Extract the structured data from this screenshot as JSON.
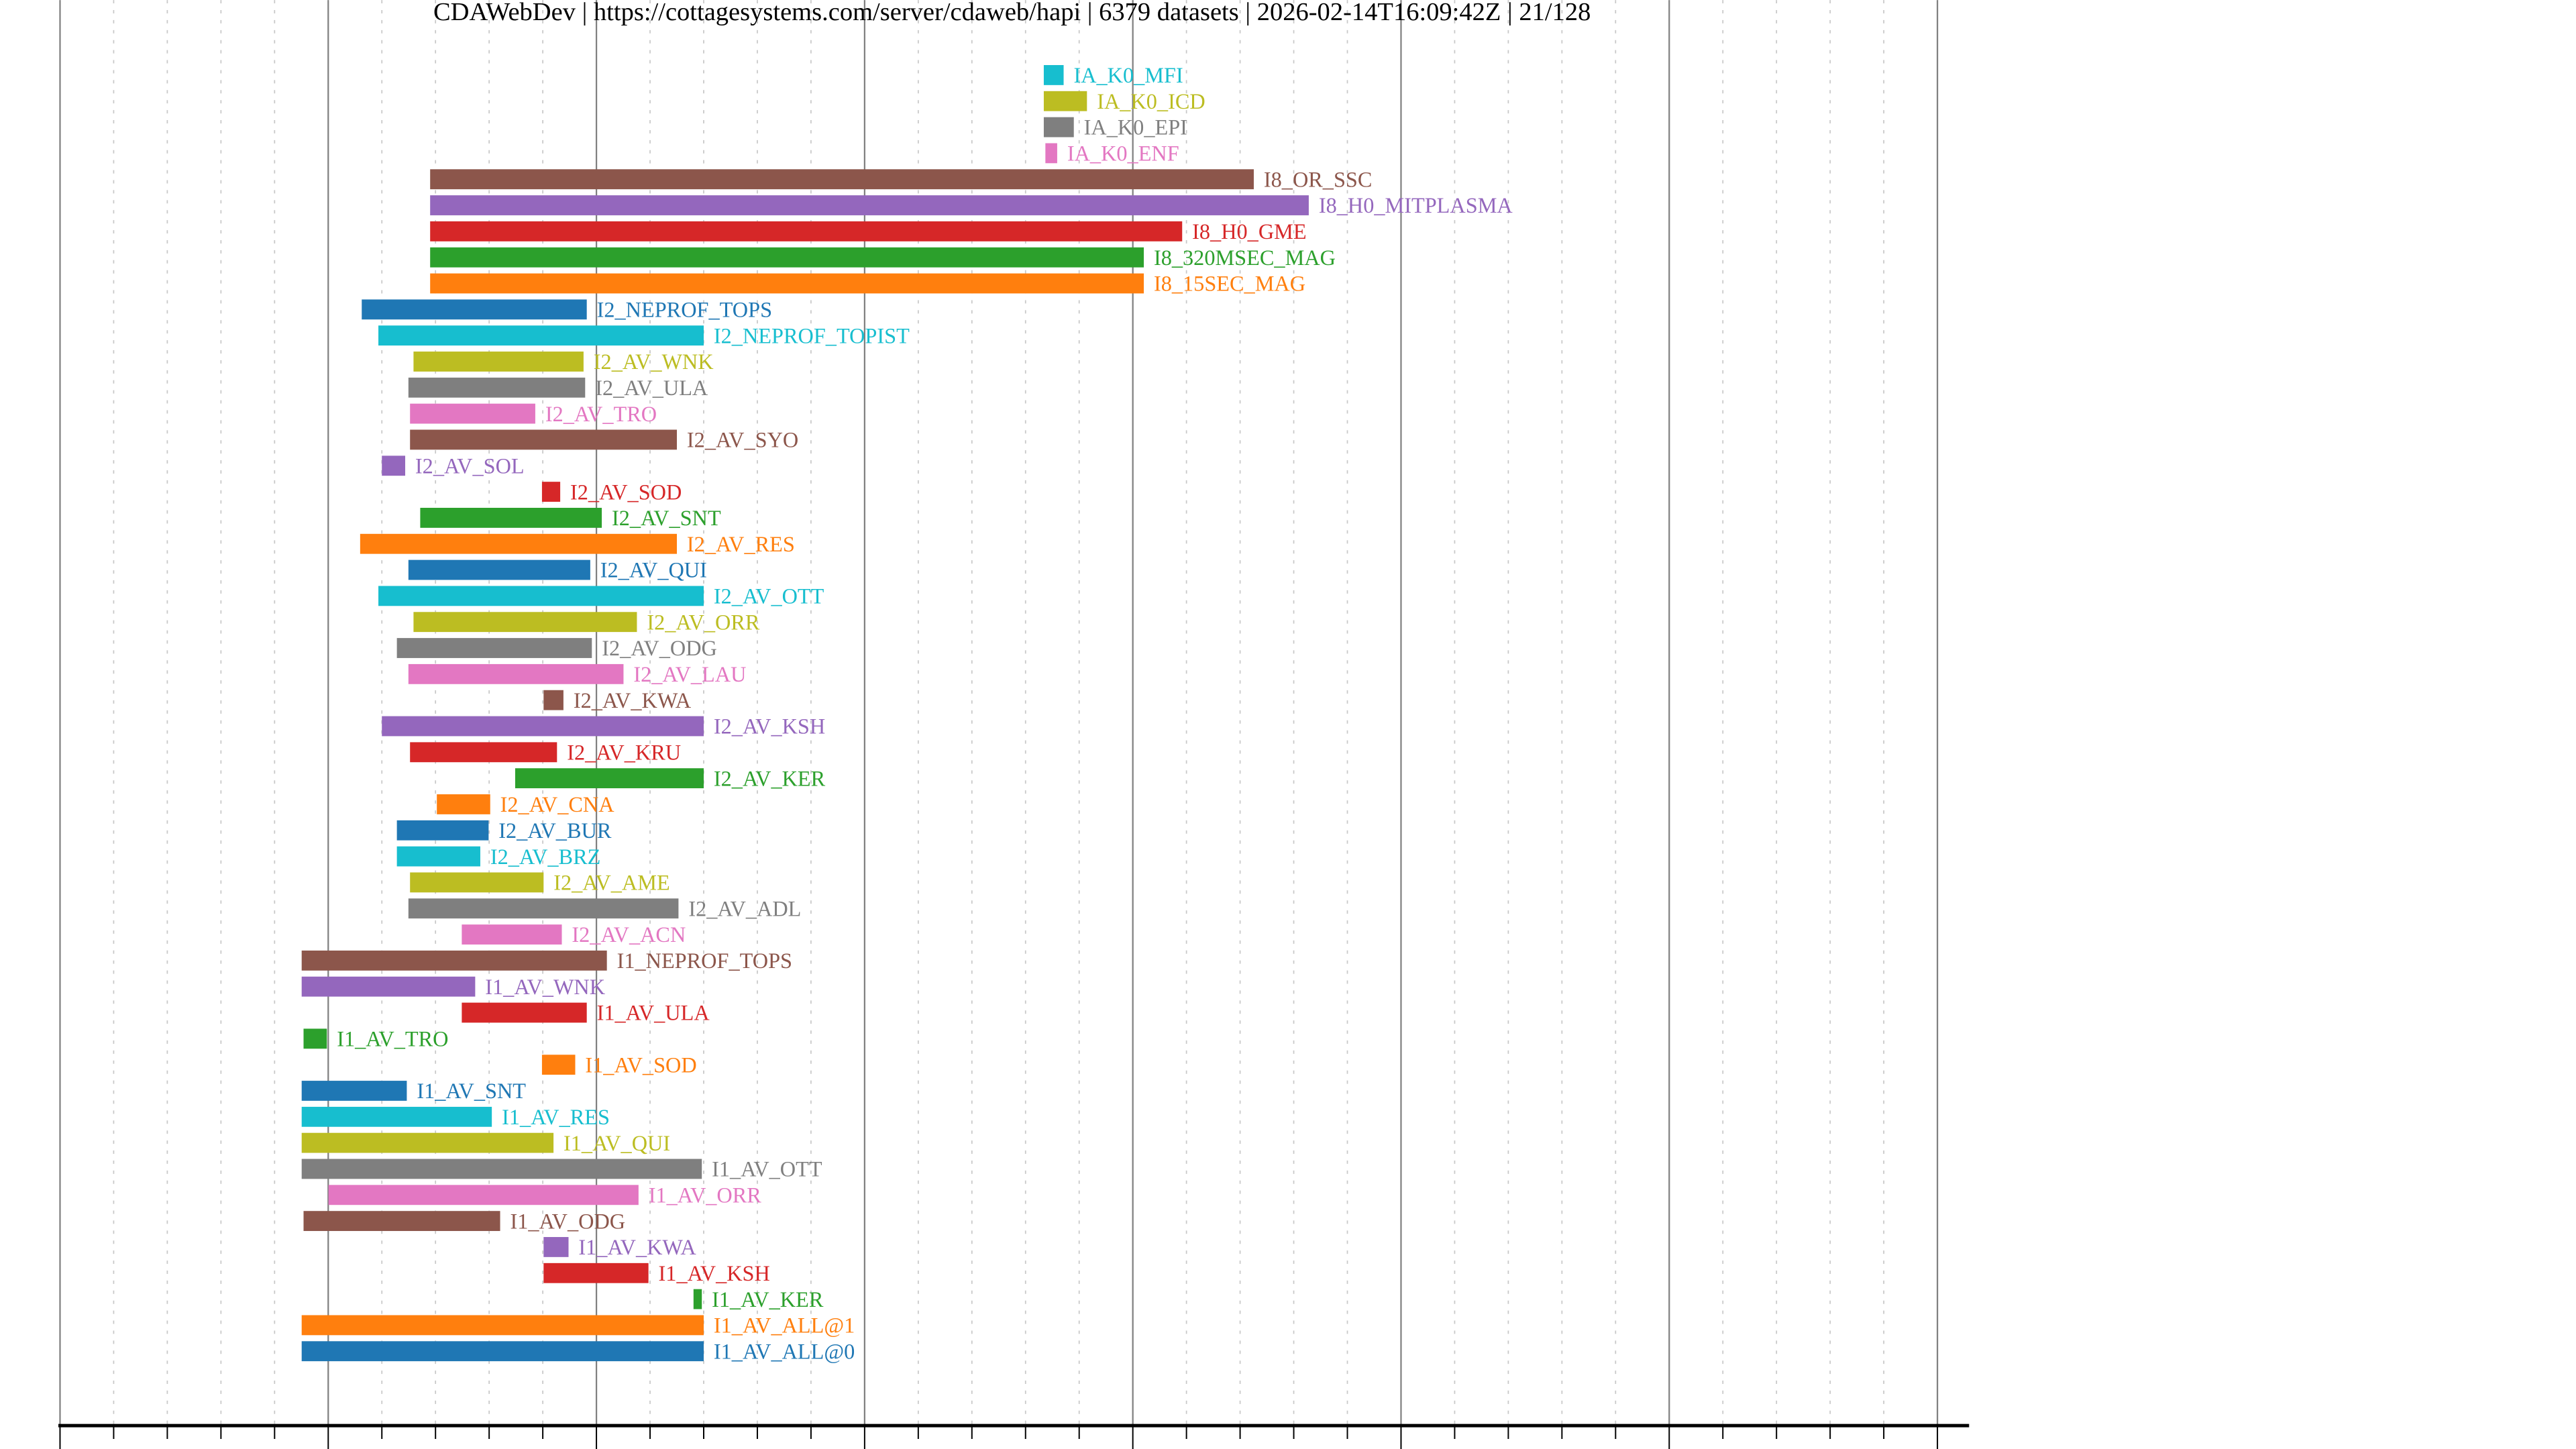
{
  "chart_data": {
    "type": "bar",
    "orientation": "horizontal-timeline",
    "title": "CDAWebDev | https://cottagesystems.com/server/cdaweb/hapi | 6379 datasets | 2026-02-14T16:09:42Z | 21/128",
    "xlabel": "",
    "ylabel": "",
    "xlim": [
      1960,
      2031
    ],
    "xticks": [
      "1960",
      "1970",
      "1980",
      "1990",
      "2000",
      "2010",
      "2020",
      "2030"
    ],
    "grid": "major every 10 years solid, minor every 2 years dotted",
    "palette": [
      "#1f77b4",
      "#ff7f0e",
      "#2ca02c",
      "#d62728",
      "#9467bd",
      "#8c564b",
      "#e377c2",
      "#7f7f7f",
      "#bcbd22",
      "#17becf"
    ],
    "series": [
      {
        "name": "IA_K0_MFI",
        "start": 1996.68,
        "end": 1997.42
      },
      {
        "name": "IA_K0_ICD",
        "start": 1996.68,
        "end": 1998.29
      },
      {
        "name": "IA_K0_EPI",
        "start": 1996.68,
        "end": 1997.8
      },
      {
        "name": "IA_K0_ENF",
        "start": 1996.74,
        "end": 1997.18
      },
      {
        "name": "I8_OR_SSC",
        "start": 1973.8,
        "end": 2004.51
      },
      {
        "name": "I8_H0_MITPLASMA",
        "start": 1973.8,
        "end": 2006.56
      },
      {
        "name": "I8_H0_GME",
        "start": 1973.8,
        "end": 2001.84
      },
      {
        "name": "I8_320MSEC_MAG",
        "start": 1973.8,
        "end": 2000.41
      },
      {
        "name": "I8_15SEC_MAG",
        "start": 1973.8,
        "end": 2000.41
      },
      {
        "name": "I2_NEPROF_TOPS",
        "start": 1971.25,
        "end": 1979.64
      },
      {
        "name": "I2_NEPROF_TOPIST",
        "start": 1971.87,
        "end": 1984.0
      },
      {
        "name": "I2_AV_WNK",
        "start": 1973.18,
        "end": 1979.52
      },
      {
        "name": "I2_AV_ULA",
        "start": 1972.99,
        "end": 1979.58
      },
      {
        "name": "I2_AV_TRO",
        "start": 1973.05,
        "end": 1977.72
      },
      {
        "name": "I2_AV_SYO",
        "start": 1973.05,
        "end": 1983.0
      },
      {
        "name": "I2_AV_SOL",
        "start": 1972.0,
        "end": 1972.87
      },
      {
        "name": "I2_AV_SOD",
        "start": 1977.97,
        "end": 1978.65
      },
      {
        "name": "I2_AV_SNT",
        "start": 1973.43,
        "end": 1980.2
      },
      {
        "name": "I2_AV_RES",
        "start": 1971.19,
        "end": 1983.0
      },
      {
        "name": "I2_AV_QUI",
        "start": 1972.99,
        "end": 1979.77
      },
      {
        "name": "I2_AV_OTT",
        "start": 1971.87,
        "end": 1984.0
      },
      {
        "name": "I2_AV_ORR",
        "start": 1973.18,
        "end": 1981.51
      },
      {
        "name": "I2_AV_ODG",
        "start": 1972.56,
        "end": 1979.83
      },
      {
        "name": "I2_AV_LAU",
        "start": 1972.99,
        "end": 1981.01
      },
      {
        "name": "I2_AV_KWA",
        "start": 1978.03,
        "end": 1978.77
      },
      {
        "name": "I2_AV_KSH",
        "start": 1972.0,
        "end": 1984.0
      },
      {
        "name": "I2_AV_KRU",
        "start": 1973.05,
        "end": 1978.53
      },
      {
        "name": "I2_AV_KER",
        "start": 1976.97,
        "end": 1984.0
      },
      {
        "name": "I2_AV_CNA",
        "start": 1974.05,
        "end": 1976.04
      },
      {
        "name": "I2_AV_BUR",
        "start": 1972.56,
        "end": 1975.98
      },
      {
        "name": "I2_AV_BRZ",
        "start": 1972.56,
        "end": 1975.67
      },
      {
        "name": "I2_AV_AME",
        "start": 1973.05,
        "end": 1978.03
      },
      {
        "name": "I2_AV_ADL",
        "start": 1972.99,
        "end": 1983.06
      },
      {
        "name": "I2_AV_ACN",
        "start": 1974.98,
        "end": 1978.71
      },
      {
        "name": "I1_NEPROF_TOPS",
        "start": 1969.01,
        "end": 1980.39
      },
      {
        "name": "I1_AV_WNK",
        "start": 1969.01,
        "end": 1975.48
      },
      {
        "name": "I1_AV_ULA",
        "start": 1974.98,
        "end": 1979.64
      },
      {
        "name": "I1_AV_TRO",
        "start": 1969.08,
        "end": 1969.95
      },
      {
        "name": "I1_AV_SOD",
        "start": 1977.97,
        "end": 1979.21
      },
      {
        "name": "I1_AV_SNT",
        "start": 1969.01,
        "end": 1972.93
      },
      {
        "name": "I1_AV_RES",
        "start": 1969.01,
        "end": 1976.1
      },
      {
        "name": "I1_AV_QUI",
        "start": 1969.01,
        "end": 1978.4
      },
      {
        "name": "I1_AV_OTT",
        "start": 1969.01,
        "end": 1983.93
      },
      {
        "name": "I1_AV_ORR",
        "start": 1970.01,
        "end": 1981.57
      },
      {
        "name": "I1_AV_ODG",
        "start": 1969.08,
        "end": 1976.41
      },
      {
        "name": "I1_AV_KWA",
        "start": 1978.03,
        "end": 1978.96
      },
      {
        "name": "I1_AV_KSH",
        "start": 1978.03,
        "end": 1981.94
      },
      {
        "name": "I1_AV_KER",
        "start": 1983.62,
        "end": 1983.93
      },
      {
        "name": "I1_AV_ALL@1",
        "start": 1969.01,
        "end": 1984.0
      },
      {
        "name": "I1_AV_ALL@0",
        "start": 1969.01,
        "end": 1984.0
      }
    ]
  }
}
